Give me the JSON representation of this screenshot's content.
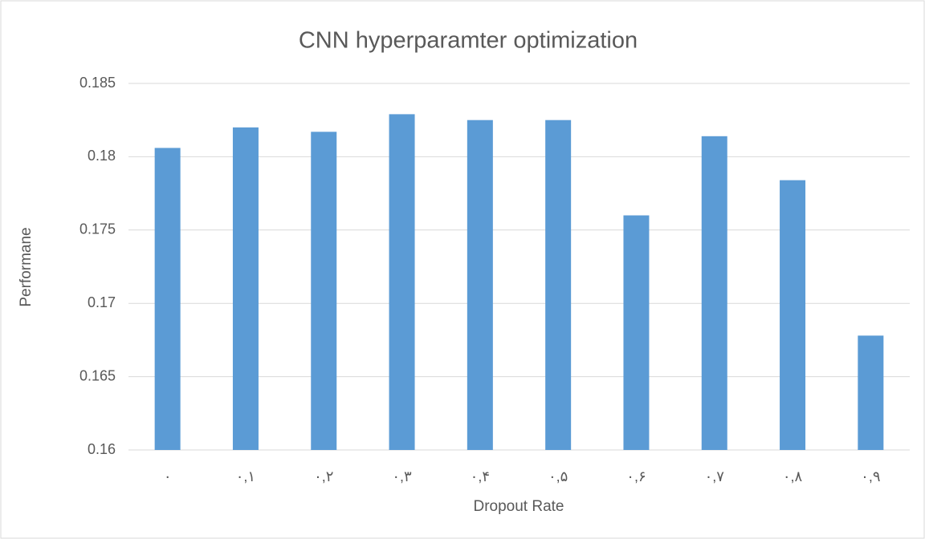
{
  "chart_data": {
    "type": "bar",
    "title": "CNN hyperparamter optimization",
    "x_label": "Dropout Rate",
    "y_label": "Performane",
    "categories": [
      "٠",
      "٠,١",
      "٠,٢",
      "٠,٣",
      "٠,۴",
      "٠,۵",
      "٠,۶",
      "٠,٧",
      "٠,٨",
      "٠,٩"
    ],
    "values": [
      0.1806,
      0.182,
      0.1817,
      0.1829,
      0.1825,
      0.1825,
      0.176,
      0.1814,
      0.1784,
      0.1678
    ],
    "color": "#5b9bd5",
    "ylim": [
      0.16,
      0.185
    ],
    "yticks": [
      0.16,
      0.165,
      0.17,
      0.175,
      0.18,
      0.185
    ],
    "grid": true
  }
}
